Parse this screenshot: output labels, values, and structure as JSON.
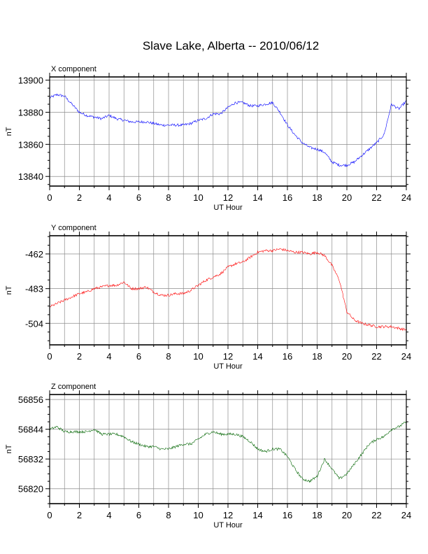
{
  "title": "Slave Lake, Alberta -- 2010/06/12",
  "chart_data": [
    {
      "type": "line",
      "title": "X component",
      "xlabel": "UT Hour",
      "ylabel": "nT",
      "xlim": [
        0,
        24
      ],
      "ylim": [
        13834,
        13902
      ],
      "xticks": [
        0,
        2,
        4,
        6,
        8,
        10,
        12,
        14,
        16,
        18,
        20,
        22,
        24
      ],
      "yticks": [
        13840,
        13860,
        13880,
        13900
      ],
      "grid": true,
      "color": "#0000ff",
      "series": [
        {
          "x": [
            0,
            0.5,
            1,
            1.5,
            2,
            2.5,
            3,
            3.5,
            4,
            4.5,
            5,
            5.5,
            6,
            6.5,
            7,
            7.5,
            8,
            8.5,
            9,
            9.5,
            10,
            10.5,
            11,
            11.5,
            12,
            12.5,
            13,
            13.5,
            14,
            14.5,
            15,
            15.5,
            16,
            16.5,
            17,
            17.5,
            18,
            18.5,
            19,
            19.5,
            20,
            20.5,
            21,
            21.5,
            22,
            22.5,
            23,
            23.5,
            24
          ],
          "values": [
            13889,
            13891,
            13890,
            13885,
            13880,
            13878,
            13877,
            13876,
            13878,
            13876,
            13875,
            13874,
            13874,
            13874,
            13873,
            13872,
            13872,
            13872,
            13872,
            13873,
            13875,
            13876,
            13879,
            13879,
            13883,
            13886,
            13886,
            13884,
            13884,
            13885,
            13886,
            13880,
            13872,
            13866,
            13861,
            13858,
            13857,
            13855,
            13849,
            13847,
            13847,
            13849,
            13853,
            13857,
            13861,
            13866,
            13885,
            13882,
            13887
          ]
        }
      ]
    },
    {
      "type": "line",
      "title": "Y component",
      "xlabel": "UT Hour",
      "ylabel": "nT",
      "xlim": [
        0,
        24
      ],
      "ylim": [
        -517,
        -451
      ],
      "xticks": [
        0,
        2,
        4,
        6,
        8,
        10,
        12,
        14,
        16,
        18,
        20,
        22,
        24
      ],
      "yticks": [
        -462,
        -483,
        -504
      ],
      "grid": true,
      "color": "#ff0000",
      "series": [
        {
          "x": [
            0,
            0.5,
            1,
            1.5,
            2,
            2.5,
            3,
            3.5,
            4,
            4.5,
            5,
            5.5,
            6,
            6.5,
            7,
            7.5,
            8,
            8.5,
            9,
            9.5,
            10,
            10.5,
            11,
            11.5,
            12,
            12.5,
            13,
            13.5,
            14,
            14.5,
            15,
            15.5,
            16,
            16.5,
            17,
            17.5,
            18,
            18.5,
            19,
            19.5,
            20,
            20.5,
            21,
            21.5,
            22,
            22.5,
            23,
            23.5,
            24
          ],
          "values": [
            -494,
            -492,
            -490,
            -488,
            -486,
            -485,
            -483,
            -482,
            -481,
            -481,
            -479,
            -483,
            -483,
            -482,
            -485,
            -487,
            -487,
            -486,
            -486,
            -484,
            -481,
            -478,
            -476,
            -474,
            -470,
            -468,
            -467,
            -464,
            -461,
            -460,
            -460,
            -459,
            -460,
            -461,
            -461,
            -462,
            -461,
            -463,
            -469,
            -478,
            -497,
            -502,
            -504,
            -505,
            -506,
            -506,
            -506,
            -507,
            -508
          ]
        }
      ]
    },
    {
      "type": "line",
      "title": "Z component",
      "xlabel": "UT Hour",
      "ylabel": "nT",
      "xlim": [
        0,
        24
      ],
      "ylim": [
        56814,
        56858
      ],
      "xticks": [
        0,
        2,
        4,
        6,
        8,
        10,
        12,
        14,
        16,
        18,
        20,
        22,
        24
      ],
      "yticks": [
        56820,
        56832,
        56844,
        56856
      ],
      "grid": true,
      "color": "#006400",
      "series": [
        {
          "x": [
            0,
            0.5,
            1,
            1.5,
            2,
            2.5,
            3,
            3.5,
            4,
            4.5,
            5,
            5.5,
            6,
            6.5,
            7,
            7.5,
            8,
            8.5,
            9,
            9.5,
            10,
            10.5,
            11,
            11.5,
            12,
            12.5,
            13,
            13.5,
            14,
            14.5,
            15,
            15.5,
            16,
            16.5,
            17,
            17.5,
            18,
            18.5,
            19,
            19.5,
            20,
            20.5,
            21,
            21.5,
            22,
            22.5,
            23,
            23.5,
            24
          ],
          "values": [
            56844,
            56845,
            56843,
            56843,
            56843,
            56843,
            56844,
            56842,
            56842,
            56842,
            56841,
            56839,
            56838,
            56837,
            56837,
            56836,
            56836,
            56837,
            56838,
            56838,
            56840,
            56842,
            56843,
            56842,
            56842,
            56842,
            56841,
            56839,
            56836,
            56835,
            56836,
            56836,
            56833,
            56828,
            56824,
            56823,
            56825,
            56832,
            56828,
            56824,
            56826,
            56830,
            56834,
            56838,
            56840,
            56841,
            56844,
            56845,
            56847
          ]
        }
      ]
    }
  ]
}
